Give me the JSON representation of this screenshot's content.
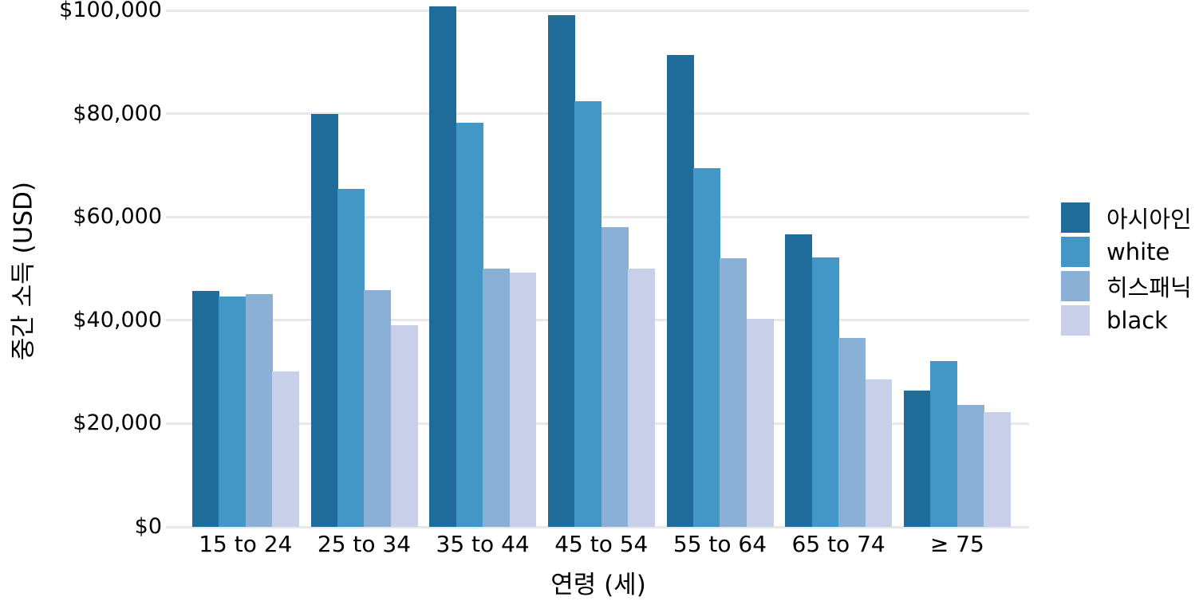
{
  "chart_data": {
    "type": "bar",
    "title": "",
    "xlabel": "연령 (세)",
    "ylabel": "중간 소득 (USD)",
    "categories": [
      "15 to 24",
      "25 to 34",
      "35 to 44",
      "45 to 54",
      "55 to 64",
      "65 to 74",
      "≥ 75"
    ],
    "series": [
      {
        "name": "아시아인",
        "color": "#1f6b99",
        "values": [
          45700,
          80000,
          100700,
          99000,
          91300,
          56600,
          26400
        ]
      },
      {
        "name": "white",
        "color": "#4297c6",
        "values": [
          44600,
          65400,
          78200,
          82400,
          69400,
          52200,
          32100
        ]
      },
      {
        "name": "히스패닉",
        "color": "#8ab0d5",
        "values": [
          45100,
          45800,
          50000,
          58000,
          52000,
          36600,
          23600
        ]
      },
      {
        "name": "black",
        "color": "#c7cfe9",
        "values": [
          30100,
          39000,
          49300,
          50000,
          40300,
          28500,
          22300
        ]
      }
    ],
    "y_ticks": [
      {
        "value": 0,
        "label": "$0"
      },
      {
        "value": 20000,
        "label": "$20,000"
      },
      {
        "value": 40000,
        "label": "$40,000"
      },
      {
        "value": 60000,
        "label": "$60,000"
      },
      {
        "value": 80000,
        "label": "$80,000"
      },
      {
        "value": 100000,
        "label": "$100,000"
      }
    ],
    "ylim": [
      0,
      100000
    ],
    "grid": "horizontal",
    "gridline_color": "#e8e8e8",
    "background": "#ffffff",
    "text_color": "#000000",
    "legend_position": "right-center",
    "legend": [
      "아시아인",
      "white",
      "히스패닉",
      "black"
    ]
  }
}
